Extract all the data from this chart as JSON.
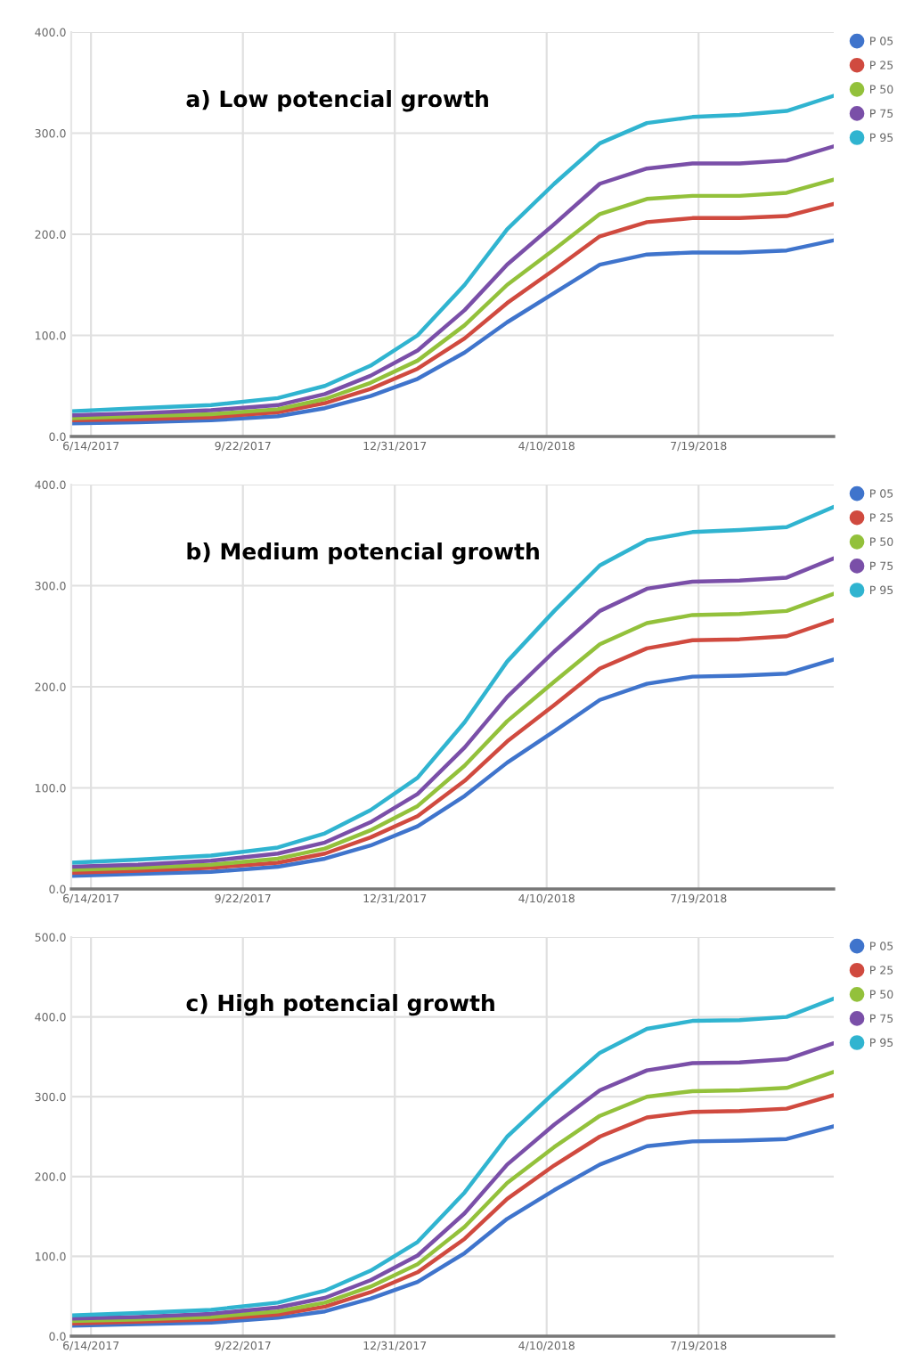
{
  "chart_data": [
    {
      "type": "line",
      "title": "a) Low potencial growth",
      "x": [
        "2017-06-01",
        "2017-07-15",
        "2017-09-01",
        "2017-10-15",
        "2017-11-15",
        "2017-12-15",
        "2018-01-15",
        "2018-02-15",
        "2018-03-15",
        "2018-04-15",
        "2018-05-15",
        "2018-06-15",
        "2018-07-15",
        "2018-08-15",
        "2018-09-15",
        "2018-10-16"
      ],
      "xlim": [
        "2017-06-01",
        "2018-10-16"
      ],
      "xticks": [
        {
          "value": "2017-06-14",
          "label": "6/14/2017"
        },
        {
          "value": "2017-09-22",
          "label": "9/22/2017"
        },
        {
          "value": "2017-12-31",
          "label": "12/31/2017"
        },
        {
          "value": "2018-04-10",
          "label": "4/10/2018"
        },
        {
          "value": "2018-07-19",
          "label": "7/19/2018"
        }
      ],
      "ylim": [
        0,
        400
      ],
      "yticks": [
        {
          "value": 0,
          "label": "0.0"
        },
        {
          "value": 100,
          "label": "100.0"
        },
        {
          "value": 200,
          "label": "200.0"
        },
        {
          "value": 300,
          "label": "300.0"
        },
        {
          "value": 400,
          "label": "400.0"
        }
      ],
      "grid": true,
      "legend": "top right",
      "line_style": "solid",
      "series": [
        {
          "name": "P 05",
          "color": "#3f74cc",
          "values": [
            13,
            14,
            16,
            20,
            28,
            40,
            57,
            83,
            113,
            142,
            170,
            180,
            182,
            182,
            184,
            194
          ]
        },
        {
          "name": "P 25",
          "color": "#d04a3f",
          "values": [
            16,
            17,
            19,
            24,
            33,
            47,
            67,
            97,
            132,
            165,
            198,
            212,
            216,
            216,
            218,
            230
          ]
        },
        {
          "name": "P 50",
          "color": "#93c13b",
          "values": [
            18,
            20,
            22,
            27,
            37,
            53,
            75,
            110,
            150,
            185,
            220,
            235,
            238,
            238,
            241,
            254
          ]
        },
        {
          "name": "P 75",
          "color": "#7a4fa8",
          "values": [
            21,
            23,
            26,
            31,
            42,
            60,
            85,
            125,
            170,
            210,
            250,
            265,
            270,
            270,
            273,
            287
          ]
        },
        {
          "name": "P 95",
          "color": "#30b4d0",
          "values": [
            25,
            28,
            31,
            38,
            50,
            70,
            100,
            150,
            205,
            250,
            290,
            310,
            316,
            318,
            322,
            337
          ]
        }
      ]
    },
    {
      "type": "line",
      "title": "b) Medium potencial growth",
      "x": [
        "2017-06-01",
        "2017-07-15",
        "2017-09-01",
        "2017-10-15",
        "2017-11-15",
        "2017-12-15",
        "2018-01-15",
        "2018-02-15",
        "2018-03-15",
        "2018-04-15",
        "2018-05-15",
        "2018-06-15",
        "2018-07-15",
        "2018-08-15",
        "2018-09-15",
        "2018-10-16"
      ],
      "xlim": [
        "2017-06-01",
        "2018-10-16"
      ],
      "xticks": [
        {
          "value": "2017-06-14",
          "label": "6/14/2017"
        },
        {
          "value": "2017-09-22",
          "label": "9/22/2017"
        },
        {
          "value": "2017-12-31",
          "label": "12/31/2017"
        },
        {
          "value": "2018-04-10",
          "label": "4/10/2018"
        },
        {
          "value": "2018-07-19",
          "label": "7/19/2018"
        }
      ],
      "ylim": [
        0,
        400
      ],
      "yticks": [
        {
          "value": 0,
          "label": "0.0"
        },
        {
          "value": 100,
          "label": "100.0"
        },
        {
          "value": 200,
          "label": "200.0"
        },
        {
          "value": 300,
          "label": "300.0"
        },
        {
          "value": 400,
          "label": "400.0"
        }
      ],
      "grid": true,
      "legend": "top right",
      "line_style": "solid",
      "series": [
        {
          "name": "P 05",
          "color": "#3f74cc",
          "values": [
            13,
            15,
            17,
            22,
            30,
            43,
            62,
            92,
            125,
            156,
            187,
            203,
            210,
            211,
            213,
            227
          ]
        },
        {
          "name": "P 25",
          "color": "#d04a3f",
          "values": [
            16,
            18,
            21,
            26,
            35,
            51,
            72,
            107,
            146,
            182,
            218,
            238,
            246,
            247,
            250,
            266
          ]
        },
        {
          "name": "P 50",
          "color": "#93c13b",
          "values": [
            19,
            21,
            24,
            30,
            40,
            58,
            82,
            122,
            166,
            205,
            242,
            263,
            271,
            272,
            275,
            292
          ]
        },
        {
          "name": "P 75",
          "color": "#7a4fa8",
          "values": [
            22,
            24,
            28,
            35,
            46,
            66,
            94,
            140,
            190,
            235,
            275,
            297,
            304,
            305,
            308,
            327
          ]
        },
        {
          "name": "P 95",
          "color": "#30b4d0",
          "values": [
            26,
            29,
            33,
            41,
            55,
            78,
            110,
            165,
            225,
            275,
            320,
            345,
            353,
            355,
            358,
            378
          ]
        }
      ]
    },
    {
      "type": "line",
      "title": "c) High potencial growth",
      "x": [
        "2017-06-01",
        "2017-07-15",
        "2017-09-01",
        "2017-10-15",
        "2017-11-15",
        "2017-12-15",
        "2018-01-15",
        "2018-02-15",
        "2018-03-15",
        "2018-04-15",
        "2018-05-15",
        "2018-06-15",
        "2018-07-15",
        "2018-08-15",
        "2018-09-15",
        "2018-10-16"
      ],
      "xlim": [
        "2017-06-01",
        "2018-10-16"
      ],
      "xticks": [
        {
          "value": "2017-06-14",
          "label": "6/14/2017"
        },
        {
          "value": "2017-09-22",
          "label": "9/22/2017"
        },
        {
          "value": "2017-12-31",
          "label": "12/31/2017"
        },
        {
          "value": "2018-04-10",
          "label": "4/10/2018"
        },
        {
          "value": "2018-07-19",
          "label": "7/19/2018"
        }
      ],
      "ylim": [
        0,
        500
      ],
      "yticks": [
        {
          "value": 0,
          "label": "0.0"
        },
        {
          "value": 100,
          "label": "100.0"
        },
        {
          "value": 200,
          "label": "200.0"
        },
        {
          "value": 300,
          "label": "300.0"
        },
        {
          "value": 400,
          "label": "400.0"
        },
        {
          "value": 500,
          "label": "500.0"
        }
      ],
      "grid": true,
      "legend": "top right",
      "line_style": "solid",
      "series": [
        {
          "name": "P 05",
          "color": "#3f74cc",
          "values": [
            13,
            15,
            17,
            23,
            31,
            47,
            68,
            104,
            147,
            183,
            215,
            238,
            244,
            245,
            247,
            263
          ]
        },
        {
          "name": "P 25",
          "color": "#d04a3f",
          "values": [
            16,
            18,
            21,
            27,
            37,
            55,
            80,
            122,
            172,
            214,
            250,
            274,
            281,
            282,
            285,
            302
          ]
        },
        {
          "name": "P 50",
          "color": "#93c13b",
          "values": [
            19,
            21,
            24,
            31,
            42,
            62,
            90,
            137,
            192,
            237,
            276,
            300,
            307,
            308,
            311,
            331
          ]
        },
        {
          "name": "P 75",
          "color": "#7a4fa8",
          "values": [
            22,
            24,
            28,
            36,
            48,
            70,
            101,
            154,
            215,
            265,
            308,
            333,
            342,
            343,
            347,
            367
          ]
        },
        {
          "name": "P 95",
          "color": "#30b4d0",
          "values": [
            26,
            29,
            33,
            42,
            57,
            82,
            118,
            180,
            250,
            305,
            355,
            385,
            395,
            396,
            400,
            423
          ]
        }
      ]
    }
  ]
}
